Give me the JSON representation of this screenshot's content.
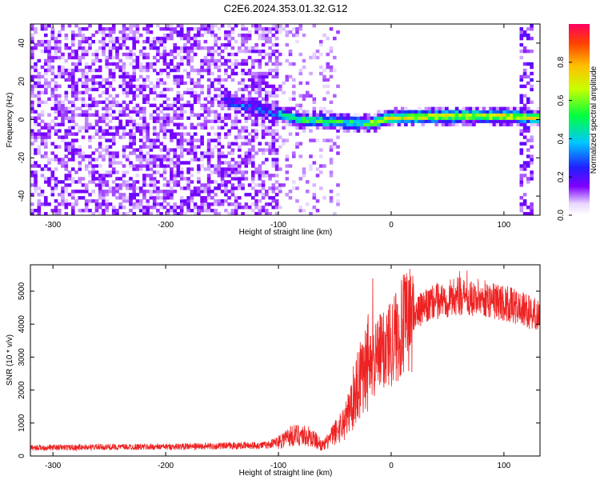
{
  "title": "C2E6.2024.353.01.32.G12",
  "chart_data": [
    {
      "type": "heatmap",
      "xlabel": "Height of straight line (km)",
      "ylabel": "Frequency (Hz)",
      "xlim": [
        -320,
        132
      ],
      "ylim": [
        -50,
        50
      ],
      "xticks": [
        -300,
        -200,
        -100,
        0,
        100
      ],
      "yticks": [
        -40,
        -20,
        0,
        20,
        40
      ],
      "colorbar": {
        "label": "Normalized spectral amplitude",
        "range": [
          0.0,
          1.0
        ],
        "ticks": [
          0.0,
          0.2,
          0.4,
          0.6,
          0.8
        ]
      },
      "features": {
        "noise_region_x": [
          -320,
          -100
        ],
        "sparse_noise_x": [
          -100,
          -45
        ],
        "signal_band_center_hz": [
          [
            -100,
            3
          ],
          [
            -80,
            0
          ],
          [
            -50,
            -1
          ],
          [
            -20,
            -2
          ],
          [
            0,
            1
          ],
          [
            50,
            2
          ],
          [
            100,
            2
          ],
          [
            130,
            1
          ]
        ],
        "vertical_noise_strip_x": [
          115,
          125
        ]
      }
    },
    {
      "type": "line",
      "xlabel": "Height of straight line (km)",
      "ylabel": "SNR (10 * v/v)",
      "xlim": [
        -320,
        132
      ],
      "ylim": [
        0,
        5800
      ],
      "xticks": [
        -300,
        -200,
        -100,
        0,
        100
      ],
      "yticks": [
        0,
        1000,
        2000,
        3000,
        4000,
        5000
      ],
      "color": "#ee2222",
      "series_envelope": {
        "x": [
          -320,
          -250,
          -200,
          -150,
          -110,
          -100,
          -90,
          -80,
          -70,
          -60,
          -50,
          -40,
          -35,
          -30,
          -25,
          -20,
          -15,
          -10,
          -5,
          0,
          10,
          20,
          40,
          60,
          80,
          100,
          120,
          132
        ],
        "y": [
          250,
          270,
          280,
          300,
          330,
          450,
          600,
          650,
          550,
          300,
          700,
          1100,
          1600,
          2200,
          2700,
          3000,
          2900,
          3100,
          3300,
          3500,
          3900,
          4300,
          4700,
          4850,
          4800,
          4650,
          4400,
          4250
        ]
      }
    }
  ]
}
